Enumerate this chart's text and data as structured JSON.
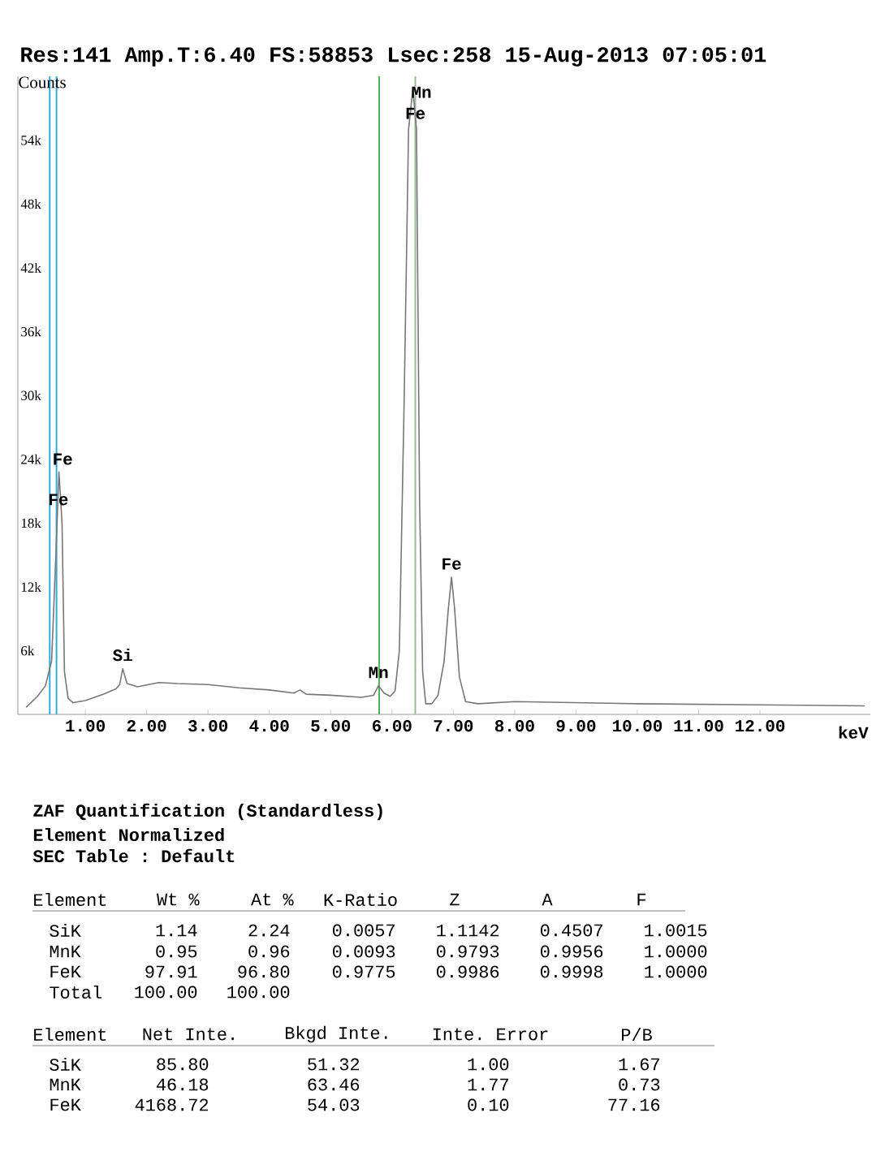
{
  "chart_data": {
    "type": "line",
    "title": "Res:141 Amp.T:6.40 FS:58853 Lsec:258 15-Aug-2013 07:05:01",
    "xlabel": "keV",
    "ylabel": "Counts",
    "color": "#777777",
    "x": [
      0.04,
      0.22,
      0.35,
      0.45,
      0.52,
      0.57,
      0.62,
      0.66,
      0.72,
      0.8,
      1.0,
      1.3,
      1.5,
      1.56,
      1.61,
      1.68,
      1.85,
      2.2,
      2.5,
      3.0,
      3.5,
      4.0,
      4.4,
      4.5,
      4.6,
      5.0,
      5.5,
      5.7,
      5.78,
      5.87,
      5.97,
      6.05,
      6.12,
      6.2,
      6.27,
      6.34,
      6.4,
      6.45,
      6.5,
      6.55,
      6.65,
      6.75,
      6.85,
      6.92,
      6.97,
      7.02,
      7.1,
      7.2,
      7.4,
      8.0,
      10.0,
      12.0,
      13.7
    ],
    "values": [
      700,
      1700,
      2700,
      5000,
      15000,
      22800,
      18000,
      4000,
      1500,
      1100,
      1300,
      1900,
      2400,
      2800,
      4300,
      2900,
      2600,
      3000,
      2900,
      2800,
      2500,
      2300,
      2000,
      2300,
      1900,
      1800,
      1600,
      1800,
      2700,
      2000,
      1700,
      2200,
      6000,
      30000,
      55000,
      58800,
      55000,
      20000,
      4000,
      1000,
      1000,
      1800,
      5000,
      10000,
      12900,
      10000,
      3500,
      1200,
      1000,
      1200,
      1000,
      900,
      800
    ],
    "xlim": [
      -0.1,
      13.8
    ],
    "ylim": [
      0,
      60000
    ],
    "xticks": [
      {
        "value": 1,
        "label": "1.00"
      },
      {
        "value": 2,
        "label": "2.00"
      },
      {
        "value": 3,
        "label": "3.00"
      },
      {
        "value": 4,
        "label": "4.00"
      },
      {
        "value": 5,
        "label": "5.00"
      },
      {
        "value": 6,
        "label": "6.00"
      },
      {
        "value": 7,
        "label": "7.00"
      },
      {
        "value": 8,
        "label": "8.00"
      },
      {
        "value": 9,
        "label": "9.00"
      },
      {
        "value": 10,
        "label": "10.00"
      },
      {
        "value": 11,
        "label": "11.00"
      },
      {
        "value": 12,
        "label": "12.00"
      }
    ],
    "yticks": [
      {
        "value": 6000,
        "label": "6k"
      },
      {
        "value": 12000,
        "label": "12k"
      },
      {
        "value": 18000,
        "label": "18k"
      },
      {
        "value": 24000,
        "label": "24k"
      },
      {
        "value": 30000,
        "label": "30k"
      },
      {
        "value": 36000,
        "label": "36k"
      },
      {
        "value": 42000,
        "label": "42k"
      },
      {
        "value": 48000,
        "label": "48k"
      },
      {
        "value": 54000,
        "label": "54k"
      }
    ],
    "ref_lines": [
      {
        "axis": "x",
        "value": 0.42,
        "color": "#33aadd"
      },
      {
        "axis": "x",
        "value": 0.53,
        "color": "#33aadd"
      },
      {
        "axis": "x",
        "value": 5.79,
        "color": "#55aa55"
      },
      {
        "axis": "x",
        "value": 6.38,
        "color": "#99bb99"
      }
    ],
    "annotations": [
      {
        "text": "Fe",
        "x": 0.63,
        "y": 24000
      },
      {
        "text": "Fe",
        "x": 0.56,
        "y": 20200
      },
      {
        "text": "Si",
        "x": 1.61,
        "y": 4300
      },
      {
        "text": "Mn",
        "x": 5.78,
        "y": 2700
      },
      {
        "text": "Mn",
        "x": 6.48,
        "y": 58500
      },
      {
        "text": "Fe",
        "x": 6.38,
        "y": 56500
      },
      {
        "text": "Fe",
        "x": 6.97,
        "y": 12900
      },
      "ZAF Quantification (Standardless)",
      "Element Normalized",
      "SEC Table : Default",
      "Element",
      "Wt %",
      "At %",
      "K-Ratio",
      "Z",
      "A",
      "F",
      "SiK",
      "1.14",
      "2.24",
      "0.0057",
      "1.1142",
      "0.4507",
      "1.0015",
      "MnK",
      "0.95",
      "0.96",
      "0.0093",
      "0.9793",
      "0.9956",
      "1.0000",
      "FeK",
      "97.91",
      "96.80",
      "0.9775",
      "0.9986",
      "0.9998",
      "1.0000",
      "Total",
      "100.00",
      "100.00",
      "Element",
      "Net Inte.",
      "Bkgd Inte.",
      "Inte. Error",
      "P/B",
      "SiK",
      "85.80",
      "51.32",
      "1.00",
      "1.67",
      "MnK",
      "46.18",
      "63.46",
      "1.77",
      "0.73",
      "FeK",
      "4168.72",
      "54.03",
      "0.10",
      "77.16"
    ]
  }
}
